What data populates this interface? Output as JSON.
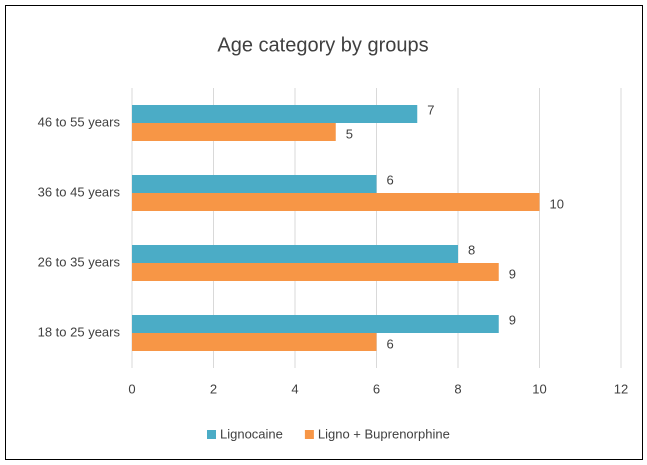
{
  "chart_data": {
    "type": "hbar",
    "title": "Age category by groups",
    "categories": [
      "18 to 25 years",
      "26 to 35 years",
      "36 to 45 years",
      "46 to 55 years"
    ],
    "series": [
      {
        "name": "Lignocaine",
        "color": "#4bacc6",
        "values": [
          9,
          8,
          6,
          7
        ]
      },
      {
        "name": "Ligno + Buprenorphine",
        "color": "#f79646",
        "values": [
          6,
          9,
          10,
          5
        ]
      }
    ],
    "xlim": [
      0,
      12
    ],
    "xticks": [
      0,
      2,
      4,
      6,
      8,
      10,
      12
    ],
    "grid": true,
    "legend": "bottom"
  }
}
